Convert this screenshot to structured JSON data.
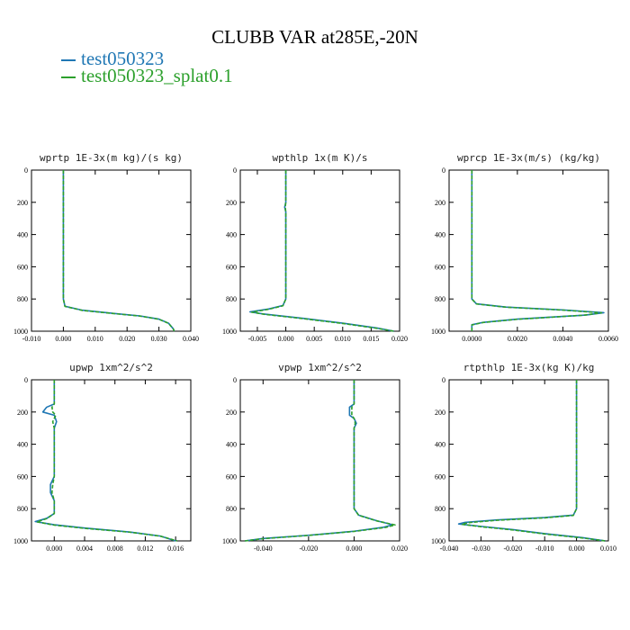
{
  "figure": {
    "title": "CLUBB VAR at285E,-20N",
    "legend": [
      {
        "name": "test050323",
        "color": "#1f77b4"
      },
      {
        "name": "test050323_splat0.1",
        "color": "#2ca02c"
      }
    ]
  },
  "chart_data": [
    {
      "type": "line",
      "title": "wprtp  1E-3x(m kg)/(s kg)",
      "xlim": [
        -0.01,
        0.04
      ],
      "ylim": [
        1000,
        0
      ],
      "xticks": [
        "-0.010",
        "0.000",
        "0.010",
        "0.020",
        "0.030",
        "0.040"
      ],
      "yticks": [
        "0",
        "200",
        "400",
        "600",
        "800",
        "1000"
      ],
      "series": [
        {
          "name": "test050323",
          "points": [
            [
              0.0,
              0
            ],
            [
              0.0,
              400
            ],
            [
              0.0,
              800
            ],
            [
              0.0005,
              845
            ],
            [
              0.006,
              870
            ],
            [
              0.015,
              888
            ],
            [
              0.024,
              905
            ],
            [
              0.03,
              925
            ],
            [
              0.033,
              950
            ],
            [
              0.0345,
              985
            ],
            [
              0.0348,
              1000
            ]
          ]
        },
        {
          "name": "test050323_splat0.1",
          "points": [
            [
              0.0,
              0
            ],
            [
              0.0,
              400
            ],
            [
              0.0,
              800
            ],
            [
              0.0005,
              846
            ],
            [
              0.006,
              871
            ],
            [
              0.015,
              889
            ],
            [
              0.024,
              906
            ],
            [
              0.03,
              926
            ],
            [
              0.033,
              951
            ],
            [
              0.0345,
              986
            ],
            [
              0.0348,
              1000
            ]
          ]
        }
      ]
    },
    {
      "type": "line",
      "title": "wpthlp  1x(m K)/s",
      "xlim": [
        -0.008,
        0.02
      ],
      "ylim": [
        1000,
        0
      ],
      "xticks": [
        "-0.005",
        "0.000",
        "0.005",
        "0.010",
        "0.015",
        "0.020"
      ],
      "yticks": [
        "0",
        "200",
        "400",
        "600",
        "800",
        "1000"
      ],
      "series": [
        {
          "name": "test050323",
          "points": [
            [
              0.0,
              0
            ],
            [
              0.0,
              200
            ],
            [
              -0.0002,
              230
            ],
            [
              0.0,
              260
            ],
            [
              0.0,
              600
            ],
            [
              0.0,
              800
            ],
            [
              -0.0005,
              840
            ],
            [
              -0.003,
              862
            ],
            [
              -0.0063,
              880
            ],
            [
              -0.004,
              893
            ],
            [
              0.003,
              920
            ],
            [
              0.01,
              950
            ],
            [
              0.016,
              980
            ],
            [
              0.019,
              1000
            ]
          ]
        },
        {
          "name": "test050323_splat0.1",
          "points": [
            [
              0.0,
              0
            ],
            [
              0.0,
              200
            ],
            [
              -0.0001,
              230
            ],
            [
              0.0,
              260
            ],
            [
              0.0,
              600
            ],
            [
              0.0,
              800
            ],
            [
              -0.0005,
              842
            ],
            [
              -0.003,
              864
            ],
            [
              -0.006,
              882
            ],
            [
              -0.0038,
              895
            ],
            [
              0.003,
              922
            ],
            [
              0.01,
              952
            ],
            [
              0.016,
              982
            ],
            [
              0.019,
              1000
            ]
          ]
        }
      ]
    },
    {
      "type": "line",
      "title": "wprcp  1E-3x(m/s) (kg/kg)",
      "xlim": [
        -0.001,
        0.006
      ],
      "ylim": [
        1000,
        0
      ],
      "xticks": [
        "0.0000",
        "0.0020",
        "0.0040",
        "0.0060"
      ],
      "yticks": [
        "0",
        "200",
        "400",
        "600",
        "800",
        "1000"
      ],
      "series": [
        {
          "name": "test050323",
          "points": [
            [
              0.0,
              0
            ],
            [
              0.0,
              400
            ],
            [
              0.0,
              800
            ],
            [
              0.0002,
              830
            ],
            [
              0.0015,
              850
            ],
            [
              0.004,
              868
            ],
            [
              0.0058,
              885
            ],
            [
              0.005,
              900
            ],
            [
              0.002,
              925
            ],
            [
              0.0005,
              945
            ],
            [
              0.0,
              960
            ],
            [
              0.0,
              1000
            ]
          ]
        },
        {
          "name": "test050323_splat0.1",
          "points": [
            [
              0.0,
              0
            ],
            [
              0.0,
              400
            ],
            [
              0.0,
              800
            ],
            [
              0.0002,
              831
            ],
            [
              0.0015,
              851
            ],
            [
              0.004,
              869
            ],
            [
              0.0057,
              886
            ],
            [
              0.0049,
              901
            ],
            [
              0.002,
              926
            ],
            [
              0.0005,
              946
            ],
            [
              0.0,
              961
            ],
            [
              0.0,
              1000
            ]
          ]
        }
      ]
    },
    {
      "type": "line",
      "title": "upwp   1xm^2/s^2",
      "xlim": [
        -0.003,
        0.018
      ],
      "ylim": [
        1000,
        0
      ],
      "xticks": [
        "0.000",
        "0.004",
        "0.008",
        "0.012",
        "0.016"
      ],
      "yticks": [
        "0",
        "200",
        "400",
        "600",
        "800",
        "1000"
      ],
      "series": [
        {
          "name": "test050323",
          "points": [
            [
              0.0,
              0
            ],
            [
              0.0,
              150
            ],
            [
              -0.001,
              170
            ],
            [
              -0.0015,
              200
            ],
            [
              0.0,
              220
            ],
            [
              0.0003,
              260
            ],
            [
              0.0,
              300
            ],
            [
              0.0,
              600
            ],
            [
              -0.0005,
              650
            ],
            [
              -0.0005,
              700
            ],
            [
              0.0,
              750
            ],
            [
              0.0,
              830
            ],
            [
              -0.001,
              860
            ],
            [
              -0.0025,
              880
            ],
            [
              0.0,
              900
            ],
            [
              0.004,
              920
            ],
            [
              0.01,
              945
            ],
            [
              0.014,
              970
            ],
            [
              0.016,
              1000
            ]
          ]
        },
        {
          "name": "test050323_splat0.1",
          "points": [
            [
              0.0,
              0
            ],
            [
              0.0,
              150
            ],
            [
              -0.0003,
              170
            ],
            [
              -0.0002,
              200
            ],
            [
              0.0002,
              220
            ],
            [
              -0.0002,
              260
            ],
            [
              0.0,
              300
            ],
            [
              0.0,
              600
            ],
            [
              -0.0002,
              650
            ],
            [
              -0.0003,
              700
            ],
            [
              0.0,
              750
            ],
            [
              0.0,
              830
            ],
            [
              -0.001,
              862
            ],
            [
              -0.0023,
              882
            ],
            [
              0.0,
              902
            ],
            [
              0.004,
              922
            ],
            [
              0.01,
              946
            ],
            [
              0.014,
              971
            ],
            [
              0.0162,
              1000
            ]
          ]
        }
      ]
    },
    {
      "type": "line",
      "title": "vpwp   1xm^2/s^2",
      "xlim": [
        -0.05,
        0.02
      ],
      "ylim": [
        1000,
        0
      ],
      "xticks": [
        "-0.040",
        "-0.020",
        "0.000",
        "0.020"
      ],
      "yticks": [
        "0",
        "200",
        "400",
        "600",
        "800",
        "1000"
      ],
      "series": [
        {
          "name": "test050323",
          "points": [
            [
              0.0,
              0
            ],
            [
              0.0,
              150
            ],
            [
              -0.002,
              170
            ],
            [
              -0.002,
              220
            ],
            [
              0.0,
              240
            ],
            [
              0.001,
              270
            ],
            [
              0.0,
              300
            ],
            [
              0.0,
              800
            ],
            [
              0.002,
              840
            ],
            [
              0.01,
              875
            ],
            [
              0.017,
              900
            ],
            [
              0.013,
              915
            ],
            [
              0.0,
              940
            ],
            [
              -0.02,
              965
            ],
            [
              -0.04,
              985
            ],
            [
              -0.048,
              1000
            ]
          ]
        },
        {
          "name": "test050323_splat0.1",
          "points": [
            [
              0.0,
              0
            ],
            [
              0.0,
              150
            ],
            [
              -0.001,
              170
            ],
            [
              -0.001,
              220
            ],
            [
              0.0,
              240
            ],
            [
              0.0005,
              270
            ],
            [
              0.0,
              300
            ],
            [
              0.0,
              800
            ],
            [
              0.002,
              841
            ],
            [
              0.01,
              876
            ],
            [
              0.018,
              901
            ],
            [
              0.014,
              916
            ],
            [
              0.0,
              941
            ],
            [
              -0.02,
              966
            ],
            [
              -0.04,
              986
            ],
            [
              -0.048,
              1000
            ]
          ]
        }
      ]
    },
    {
      "type": "line",
      "title": "rtpthlp  1E-3x(kg K)/kg",
      "xlim": [
        -0.04,
        0.01
      ],
      "ylim": [
        1000,
        0
      ],
      "xticks": [
        "-0.040",
        "-0.030",
        "-0.020",
        "-0.010",
        "0.000",
        "0.010"
      ],
      "yticks": [
        "0",
        "200",
        "400",
        "600",
        "800",
        "1000"
      ],
      "series": [
        {
          "name": "test050323",
          "points": [
            [
              0.0,
              0
            ],
            [
              0.0,
              400
            ],
            [
              0.0,
              800
            ],
            [
              -0.001,
              840
            ],
            [
              -0.01,
              855
            ],
            [
              -0.025,
              870
            ],
            [
              -0.035,
              885
            ],
            [
              -0.037,
              895
            ],
            [
              -0.03,
              910
            ],
            [
              -0.02,
              930
            ],
            [
              -0.01,
              955
            ],
            [
              0.002,
              980
            ],
            [
              0.009,
              1000
            ]
          ]
        },
        {
          "name": "test050323_splat0.1",
          "points": [
            [
              0.0,
              0
            ],
            [
              0.0,
              400
            ],
            [
              0.0,
              800
            ],
            [
              -0.001,
              842
            ],
            [
              -0.01,
              857
            ],
            [
              -0.025,
              872
            ],
            [
              -0.034,
              887
            ],
            [
              -0.036,
              897
            ],
            [
              -0.03,
              912
            ],
            [
              -0.02,
              932
            ],
            [
              -0.01,
              957
            ],
            [
              0.002,
              982
            ],
            [
              0.009,
              1000
            ]
          ]
        }
      ]
    }
  ]
}
